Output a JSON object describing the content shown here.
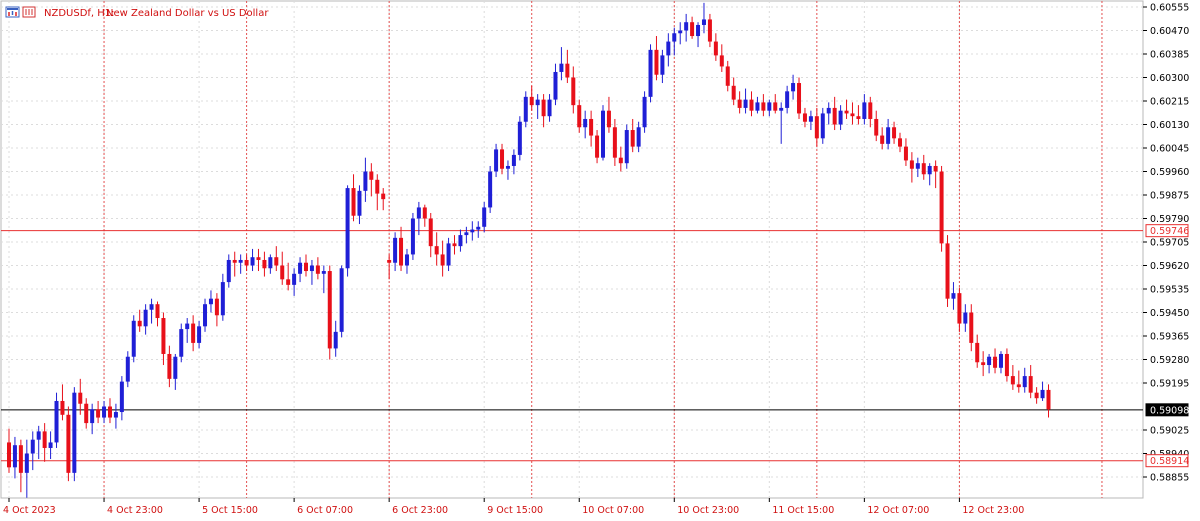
{
  "header": {
    "symbol_timeframe": "NZDUSDf, H1:",
    "description": "New Zealand Dollar vs US Dollar"
  },
  "colors": {
    "bull": "#1f1fd6",
    "bear": "#e8101a",
    "grid": "#dcdcdc",
    "session": "#e45050",
    "hline_red": "#e83030",
    "hline_black": "#000000",
    "axis_text": "#000000",
    "time_text": "#d01010"
  },
  "chart_data": {
    "type": "candlestick",
    "title": "NZDUSDf, H1: New Zealand Dollar vs US Dollar",
    "ylim": [
      0.5879,
      0.6058
    ],
    "y_ticks": [
      "0.60555",
      "0.60470",
      "0.60385",
      "0.60300",
      "0.60215",
      "0.60130",
      "0.60045",
      "0.59960",
      "0.59875",
      "0.59790",
      "0.59705",
      "0.59620",
      "0.59535",
      "0.59450",
      "0.59365",
      "0.59280",
      "0.59195",
      "0.59025",
      "0.58940",
      "0.58855"
    ],
    "x_tick_labels": [
      "4 Oct 2023",
      "4 Oct 23:00",
      "5 Oct 15:00",
      "6 Oct 07:00",
      "6 Oct 23:00",
      "9 Oct 15:00",
      "10 Oct 07:00",
      "10 Oct 23:00",
      "11 Oct 15:00",
      "12 Oct 07:00",
      "12 Oct 23:00"
    ],
    "x_tick_index": [
      0,
      16,
      32,
      48,
      64,
      80,
      96,
      112,
      128,
      144,
      160
    ],
    "session_separator_index": [
      16,
      40,
      64,
      88,
      112,
      136,
      160,
      184
    ],
    "horizontal_lines": [
      {
        "price": 0.59746,
        "label": "0.59746",
        "style": "red"
      },
      {
        "price": 0.59098,
        "label": "0.59098",
        "style": "black"
      },
      {
        "price": 0.58914,
        "label": "0.58914",
        "style": "red"
      }
    ],
    "grid": true,
    "candles": [
      [
        0.5898,
        0.5903,
        0.5887,
        0.5889
      ],
      [
        0.5889,
        0.59,
        0.5885,
        0.5897
      ],
      [
        0.5897,
        0.5899,
        0.588,
        0.5887
      ],
      [
        0.5887,
        0.5899,
        0.5878,
        0.5894
      ],
      [
        0.5894,
        0.5902,
        0.5888,
        0.5899
      ],
      [
        0.5899,
        0.5904,
        0.5892,
        0.5902
      ],
      [
        0.5902,
        0.5905,
        0.5891,
        0.5896
      ],
      [
        0.5896,
        0.5902,
        0.5892,
        0.5898
      ],
      [
        0.5898,
        0.5916,
        0.5896,
        0.5913
      ],
      [
        0.5913,
        0.5919,
        0.5906,
        0.5908
      ],
      [
        0.5908,
        0.5911,
        0.5884,
        0.5887
      ],
      [
        0.5887,
        0.5918,
        0.5884,
        0.5916
      ],
      [
        0.5916,
        0.5921,
        0.5908,
        0.5912
      ],
      [
        0.5912,
        0.5914,
        0.5903,
        0.5905
      ],
      [
        0.5905,
        0.5912,
        0.5901,
        0.591
      ],
      [
        0.591,
        0.5913,
        0.5905,
        0.5907
      ],
      [
        0.5907,
        0.5913,
        0.5905,
        0.5911
      ],
      [
        0.5911,
        0.5914,
        0.5905,
        0.5907
      ],
      [
        0.5907,
        0.5912,
        0.5903,
        0.5909
      ],
      [
        0.5909,
        0.5922,
        0.5906,
        0.592
      ],
      [
        0.592,
        0.5931,
        0.5918,
        0.5929
      ],
      [
        0.5929,
        0.5944,
        0.5927,
        0.5942
      ],
      [
        0.5942,
        0.5946,
        0.5938,
        0.594
      ],
      [
        0.594,
        0.5948,
        0.5937,
        0.5946
      ],
      [
        0.5946,
        0.595,
        0.5941,
        0.5948
      ],
      [
        0.5948,
        0.5949,
        0.594,
        0.5943
      ],
      [
        0.5943,
        0.5945,
        0.5926,
        0.593
      ],
      [
        0.593,
        0.5933,
        0.5918,
        0.5921
      ],
      [
        0.5921,
        0.593,
        0.5917,
        0.5929
      ],
      [
        0.5929,
        0.5941,
        0.5927,
        0.5939
      ],
      [
        0.5939,
        0.5943,
        0.5934,
        0.5941
      ],
      [
        0.5941,
        0.5944,
        0.5931,
        0.5934
      ],
      [
        0.5934,
        0.5942,
        0.5932,
        0.594
      ],
      [
        0.594,
        0.595,
        0.5938,
        0.5948
      ],
      [
        0.5948,
        0.5953,
        0.5945,
        0.595
      ],
      [
        0.595,
        0.5952,
        0.594,
        0.5944
      ],
      [
        0.5944,
        0.5959,
        0.5942,
        0.5956
      ],
      [
        0.5956,
        0.5966,
        0.5954,
        0.5964
      ],
      [
        0.5964,
        0.5967,
        0.5958,
        0.5963
      ],
      [
        0.5963,
        0.5966,
        0.5959,
        0.5964
      ],
      [
        0.5964,
        0.5966,
        0.596,
        0.5962
      ],
      [
        0.5962,
        0.5968,
        0.596,
        0.5965
      ],
      [
        0.5965,
        0.5968,
        0.596,
        0.5964
      ],
      [
        0.5964,
        0.5967,
        0.5958,
        0.5961
      ],
      [
        0.5961,
        0.5966,
        0.5959,
        0.5965
      ],
      [
        0.5965,
        0.5969,
        0.596,
        0.5962
      ],
      [
        0.5962,
        0.5967,
        0.5955,
        0.5957
      ],
      [
        0.5957,
        0.5963,
        0.5953,
        0.5955
      ],
      [
        0.5955,
        0.5961,
        0.5951,
        0.5959
      ],
      [
        0.5959,
        0.5965,
        0.5956,
        0.5963
      ],
      [
        0.5963,
        0.5966,
        0.5958,
        0.596
      ],
      [
        0.596,
        0.5964,
        0.5955,
        0.5962
      ],
      [
        0.5962,
        0.5965,
        0.5957,
        0.5959
      ],
      [
        0.5959,
        0.5962,
        0.5952,
        0.596
      ],
      [
        0.596,
        0.5962,
        0.5928,
        0.5932
      ],
      [
        0.5932,
        0.5942,
        0.5929,
        0.5938
      ],
      [
        0.5938,
        0.5962,
        0.5936,
        0.5961
      ],
      [
        0.5961,
        0.5991,
        0.5958,
        0.599
      ],
      [
        0.599,
        0.5995,
        0.5978,
        0.598
      ],
      [
        0.598,
        0.5991,
        0.5977,
        0.5989
      ],
      [
        0.5989,
        0.6001,
        0.5985,
        0.5996
      ],
      [
        0.5996,
        0.5999,
        0.5987,
        0.5993
      ],
      [
        0.5993,
        0.5995,
        0.5982,
        0.5988
      ],
      [
        0.5988,
        0.599,
        0.5982,
        0.5986
      ],
      [
        0.5964,
        0.5966,
        0.5957,
        0.5963
      ],
      [
        0.5963,
        0.5974,
        0.596,
        0.5972
      ],
      [
        0.5972,
        0.5976,
        0.596,
        0.5962
      ],
      [
        0.5962,
        0.5968,
        0.5959,
        0.5966
      ],
      [
        0.5966,
        0.5981,
        0.5964,
        0.5979
      ],
      [
        0.5979,
        0.5985,
        0.5973,
        0.5983
      ],
      [
        0.5983,
        0.5984,
        0.5976,
        0.5979
      ],
      [
        0.5979,
        0.5981,
        0.5965,
        0.5969
      ],
      [
        0.5969,
        0.5974,
        0.5962,
        0.5966
      ],
      [
        0.5966,
        0.5971,
        0.5958,
        0.5962
      ],
      [
        0.5962,
        0.5972,
        0.596,
        0.597
      ],
      [
        0.597,
        0.5973,
        0.5966,
        0.5969
      ],
      [
        0.5969,
        0.5975,
        0.5967,
        0.5973
      ],
      [
        0.5973,
        0.5976,
        0.597,
        0.5974
      ],
      [
        0.5974,
        0.5978,
        0.5971,
        0.5975
      ],
      [
        0.5975,
        0.5978,
        0.5972,
        0.5976
      ],
      [
        0.5976,
        0.5985,
        0.5974,
        0.5983
      ],
      [
        0.5983,
        0.5998,
        0.5981,
        0.5996
      ],
      [
        0.5996,
        0.6006,
        0.5994,
        0.6004
      ],
      [
        0.6004,
        0.6006,
        0.5995,
        0.5997
      ],
      [
        0.5997,
        0.6,
        0.5993,
        0.5998
      ],
      [
        0.5998,
        0.6004,
        0.5995,
        0.6002
      ],
      [
        0.6002,
        0.6016,
        0.6,
        0.6014
      ],
      [
        0.6014,
        0.6025,
        0.6012,
        0.6023
      ],
      [
        0.6023,
        0.6027,
        0.6018,
        0.602
      ],
      [
        0.602,
        0.6024,
        0.6015,
        0.6022
      ],
      [
        0.6022,
        0.6024,
        0.6012,
        0.6016
      ],
      [
        0.6016,
        0.6024,
        0.6014,
        0.6022
      ],
      [
        0.6022,
        0.6035,
        0.602,
        0.6032
      ],
      [
        0.6032,
        0.6041,
        0.6029,
        0.6035
      ],
      [
        0.6035,
        0.604,
        0.6028,
        0.603
      ],
      [
        0.603,
        0.6034,
        0.6017,
        0.602
      ],
      [
        0.602,
        0.6022,
        0.601,
        0.6012
      ],
      [
        0.6012,
        0.6018,
        0.6008,
        0.6015
      ],
      [
        0.6015,
        0.6018,
        0.6005,
        0.6009
      ],
      [
        0.6009,
        0.6011,
        0.5999,
        0.6001
      ],
      [
        0.6001,
        0.602,
        0.6,
        0.6018
      ],
      [
        0.6018,
        0.6023,
        0.601,
        0.6012
      ],
      [
        0.6012,
        0.6015,
        0.5998,
        0.6001
      ],
      [
        0.6001,
        0.6005,
        0.5996,
        0.5999
      ],
      [
        0.5999,
        0.6013,
        0.5997,
        0.6011
      ],
      [
        0.6011,
        0.6015,
        0.6003,
        0.6005
      ],
      [
        0.6005,
        0.6014,
        0.6003,
        0.6012
      ],
      [
        0.6012,
        0.6025,
        0.601,
        0.6023
      ],
      [
        0.6023,
        0.6042,
        0.6021,
        0.604
      ],
      [
        0.604,
        0.6045,
        0.6029,
        0.6031
      ],
      [
        0.6031,
        0.604,
        0.6028,
        0.6038
      ],
      [
        0.6038,
        0.6046,
        0.6034,
        0.6043
      ],
      [
        0.6043,
        0.6048,
        0.6038,
        0.6046
      ],
      [
        0.6046,
        0.605,
        0.6042,
        0.6047
      ],
      [
        0.6047,
        0.6053,
        0.6043,
        0.605
      ],
      [
        0.605,
        0.6052,
        0.6044,
        0.6045
      ],
      [
        0.6045,
        0.605,
        0.6041,
        0.6049
      ],
      [
        0.6049,
        0.6057,
        0.6046,
        0.6051
      ],
      [
        0.6051,
        0.6053,
        0.6041,
        0.6043
      ],
      [
        0.6043,
        0.6046,
        0.6036,
        0.6038
      ],
      [
        0.6038,
        0.6042,
        0.6032,
        0.6034
      ],
      [
        0.6034,
        0.6036,
        0.6025,
        0.6027
      ],
      [
        0.6027,
        0.603,
        0.602,
        0.6022
      ],
      [
        0.6022,
        0.6025,
        0.6017,
        0.6019
      ],
      [
        0.6019,
        0.6026,
        0.6017,
        0.6022
      ],
      [
        0.6022,
        0.6025,
        0.6016,
        0.6018
      ],
      [
        0.6018,
        0.6023,
        0.6017,
        0.6021
      ],
      [
        0.6021,
        0.6024,
        0.6016,
        0.6018
      ],
      [
        0.6018,
        0.6022,
        0.6016,
        0.6021
      ],
      [
        0.6021,
        0.6024,
        0.6017,
        0.6018
      ],
      [
        0.6018,
        0.6021,
        0.6006,
        0.6019
      ],
      [
        0.6019,
        0.6027,
        0.6017,
        0.6025
      ],
      [
        0.6025,
        0.6031,
        0.6022,
        0.6028
      ],
      [
        0.6028,
        0.603,
        0.6015,
        0.6017
      ],
      [
        0.6017,
        0.6019,
        0.6012,
        0.6014
      ],
      [
        0.6014,
        0.6018,
        0.6011,
        0.6016
      ],
      [
        0.6016,
        0.6019,
        0.6005,
        0.6008
      ],
      [
        0.6008,
        0.6019,
        0.6006,
        0.6017
      ],
      [
        0.6017,
        0.6021,
        0.6013,
        0.6019
      ],
      [
        0.6019,
        0.6023,
        0.6011,
        0.6013
      ],
      [
        0.6013,
        0.602,
        0.6011,
        0.6018
      ],
      [
        0.6018,
        0.6022,
        0.6015,
        0.6017
      ],
      [
        0.6017,
        0.6021,
        0.6013,
        0.6016
      ],
      [
        0.6016,
        0.602,
        0.6013,
        0.6015
      ],
      [
        0.6015,
        0.6024,
        0.6013,
        0.6021
      ],
      [
        0.6021,
        0.6023,
        0.6012,
        0.6015
      ],
      [
        0.6015,
        0.6018,
        0.6007,
        0.6009
      ],
      [
        0.6009,
        0.6012,
        0.6004,
        0.6006
      ],
      [
        0.6006,
        0.6015,
        0.6004,
        0.6012
      ],
      [
        0.6012,
        0.6014,
        0.6006,
        0.6008
      ],
      [
        0.6008,
        0.601,
        0.6003,
        0.6005
      ],
      [
        0.6005,
        0.6008,
        0.5998,
        0.6
      ],
      [
        0.6,
        0.6003,
        0.5992,
        0.5997
      ],
      [
        0.5997,
        0.6001,
        0.5994,
        0.5999
      ],
      [
        0.5999,
        0.6002,
        0.5993,
        0.5995
      ],
      [
        0.5995,
        0.5999,
        0.5991,
        0.5998
      ],
      [
        0.5998,
        0.6,
        0.599,
        0.5996
      ],
      [
        0.5996,
        0.5998,
        0.5967,
        0.597
      ],
      [
        0.597,
        0.5973,
        0.5947,
        0.595
      ],
      [
        0.595,
        0.5956,
        0.5946,
        0.5952
      ],
      [
        0.5952,
        0.5954,
        0.5938,
        0.5941
      ],
      [
        0.5941,
        0.5948,
        0.5938,
        0.5945
      ],
      [
        0.5945,
        0.5948,
        0.5931,
        0.5934
      ],
      [
        0.5934,
        0.5937,
        0.5925,
        0.5927
      ],
      [
        0.5927,
        0.5931,
        0.5922,
        0.5926
      ],
      [
        0.5926,
        0.593,
        0.5923,
        0.5929
      ],
      [
        0.5929,
        0.5932,
        0.5923,
        0.5925
      ],
      [
        0.5925,
        0.5931,
        0.5923,
        0.593
      ],
      [
        0.593,
        0.5932,
        0.592,
        0.5922
      ],
      [
        0.5922,
        0.5926,
        0.5917,
        0.5919
      ],
      [
        0.5919,
        0.5924,
        0.5916,
        0.5918
      ],
      [
        0.5918,
        0.5925,
        0.5916,
        0.5922
      ],
      [
        0.5922,
        0.5926,
        0.5914,
        0.5916
      ],
      [
        0.5916,
        0.5918,
        0.5912,
        0.5914
      ],
      [
        0.5914,
        0.592,
        0.5913,
        0.5917
      ],
      [
        0.5917,
        0.5919,
        0.5907,
        0.591
      ]
    ]
  }
}
